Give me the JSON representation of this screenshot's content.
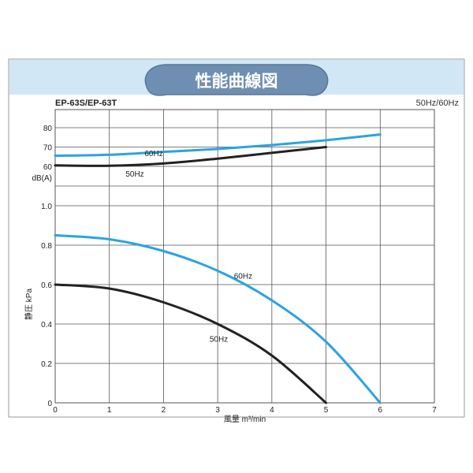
{
  "header": {
    "title": "性能曲線図",
    "colors": {
      "band": "#d2e7f6",
      "banner": "#6f8fb2",
      "banner_text": "#ffffff",
      "frame": "#9a9a9a"
    }
  },
  "chart_data": {
    "type": "line",
    "model": "EP-63S/EP-63T",
    "frequency_note": "50Hz/60Hz",
    "xlabel": "風量 m³/min",
    "xlim": [
      0,
      7
    ],
    "x_ticks": [
      "0",
      "1",
      "2",
      "3",
      "4",
      "5",
      "6",
      "7"
    ],
    "grid": true,
    "colors": {
      "50Hz": "#222222",
      "60Hz": "#2aa3e2"
    },
    "noise": {
      "ylabel": "dB(A)",
      "ylim": [
        60,
        80
      ],
      "y_ticks": [
        "60",
        "70",
        "80"
      ],
      "series": [
        {
          "name": "60Hz",
          "x": [
            0,
            1,
            2,
            3,
            4,
            5,
            6
          ],
          "values": [
            65.5,
            66,
            67.5,
            69,
            71,
            73.5,
            76.5
          ]
        },
        {
          "name": "50Hz",
          "x": [
            0,
            1,
            2,
            3,
            4,
            5
          ],
          "values": [
            60.5,
            60.3,
            61.5,
            64,
            67,
            70
          ]
        }
      ]
    },
    "pressure": {
      "ylabel": "静圧 kPa",
      "ylim": [
        0,
        1.0
      ],
      "y_ticks": [
        "0",
        "0.2",
        "0.4",
        "0.6",
        "0.8",
        "1.0"
      ],
      "series": [
        {
          "name": "60Hz",
          "x": [
            0,
            1,
            2,
            3,
            4,
            5,
            6
          ],
          "values": [
            0.85,
            0.83,
            0.77,
            0.67,
            0.52,
            0.31,
            0.0
          ]
        },
        {
          "name": "50Hz",
          "x": [
            0,
            1,
            2,
            3,
            4,
            5
          ],
          "values": [
            0.6,
            0.58,
            0.51,
            0.4,
            0.24,
            0.0
          ]
        }
      ]
    }
  }
}
